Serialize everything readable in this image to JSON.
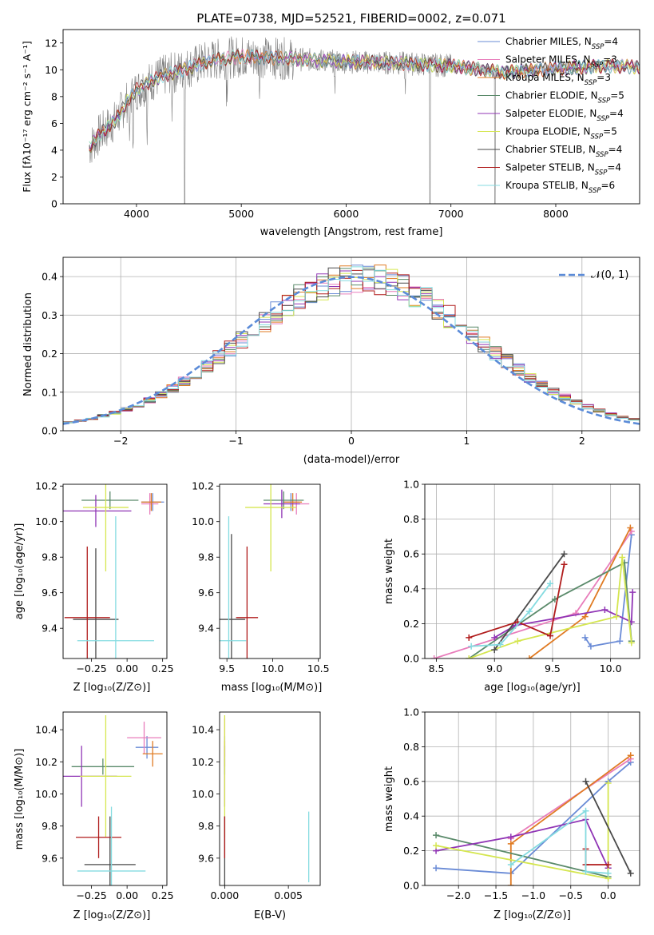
{
  "figure": {
    "title": "PLATE=0738, MJD=52521, FIBERID=0002, z=0.071"
  },
  "chart_data": [
    {
      "id": "spectrum",
      "type": "line",
      "xlabel": "wavelength [Angstrom, rest frame]",
      "ylabel": "Flux [f_λ10^-17 erg cm^-2 s^-1 A^-1]",
      "xlim": [
        3300,
        8800
      ],
      "ylim": [
        0,
        13
      ],
      "xticks": [
        4000,
        5000,
        6000,
        7000,
        8000
      ],
      "yticks": [
        0,
        2,
        4,
        6,
        8,
        10,
        12
      ],
      "grid": false,
      "legend_position": "right",
      "data_color": "#808080",
      "series": [
        {
          "name": "Chabrier MILES, N_SSP=4",
          "color": "#6a8bd6"
        },
        {
          "name": "Salpeter MILES, N_SSP=3",
          "color": "#e87dbb"
        },
        {
          "name": "Kroupa MILES, N_SSP=3",
          "color": "#e07b23"
        },
        {
          "name": "Chabrier ELODIE, N_SSP=5",
          "color": "#5a8a6a"
        },
        {
          "name": "Salpeter ELODIE, N_SSP=4",
          "color": "#9035b5"
        },
        {
          "name": "Kroupa ELODIE, N_SSP=5",
          "color": "#d5e650"
        },
        {
          "name": "Chabrier STELIB, N_SSP=4",
          "color": "#4a4a4a"
        },
        {
          "name": "Salpeter STELIB, N_SSP=4",
          "color": "#b01c1c"
        },
        {
          "name": "Kroupa STELIB, N_SSP=6",
          "color": "#84dbe0"
        }
      ],
      "continuum_points": [
        [
          3550,
          4.2
        ],
        [
          3650,
          5.2
        ],
        [
          3800,
          6.2
        ],
        [
          3900,
          7.5
        ],
        [
          4000,
          8.5
        ],
        [
          4200,
          9.4
        ],
        [
          4400,
          9.9
        ],
        [
          4700,
          10.7
        ],
        [
          5000,
          11.0
        ],
        [
          5500,
          10.8
        ],
        [
          6000,
          10.6
        ],
        [
          6500,
          10.5
        ],
        [
          7000,
          10.3
        ],
        [
          7500,
          9.8
        ],
        [
          8000,
          10.1
        ],
        [
          8500,
          10.3
        ],
        [
          8800,
          10.2
        ]
      ]
    },
    {
      "id": "residuals",
      "type": "histogram",
      "xlabel": "(data-model)/error",
      "ylabel": "Normed distribution",
      "xlim": [
        -2.5,
        2.5
      ],
      "ylim": [
        0,
        0.45
      ],
      "xticks": [
        -2,
        -1,
        0,
        1,
        2
      ],
      "yticks": [
        0.0,
        0.1,
        0.2,
        0.3,
        0.4
      ],
      "grid": true,
      "legend": "N(0,1)",
      "legend_position": "top-right",
      "bin_width": 0.1,
      "reference_curve": "gaussian mean 0 sigma 1"
    },
    {
      "id": "age_vs_Z",
      "type": "scatter-errorbars",
      "xlabel": "Z [log10(Z/Z⊙)]",
      "ylabel": "age  [log10(age/yr)]",
      "xlim": [
        -0.45,
        0.28
      ],
      "ylim": [
        9.23,
        10.21
      ],
      "xticks": [
        -0.25,
        0.0,
        0.25
      ],
      "yticks": [
        9.4,
        9.6,
        9.8,
        10.0,
        10.2
      ],
      "points": [
        {
          "x": 0.18,
          "y": 10.11,
          "xerr": 0.08,
          "yerr": 0.05,
          "color": "#6a8bd6"
        },
        {
          "x": 0.16,
          "y": 10.1,
          "xerr": 0.06,
          "yerr": 0.06,
          "color": "#e87dbb"
        },
        {
          "x": 0.17,
          "y": 10.11,
          "xerr": 0.07,
          "yerr": 0.05,
          "color": "#e07b23"
        },
        {
          "x": -0.12,
          "y": 10.12,
          "xerr": 0.2,
          "yerr": 0.05,
          "color": "#5a8a6a"
        },
        {
          "x": -0.22,
          "y": 10.06,
          "xerr": 0.25,
          "yerr": 0.09,
          "color": "#9035b5"
        },
        {
          "x": -0.15,
          "y": 10.08,
          "xerr": 0.16,
          "yerr": 0.36,
          "color": "#d5e650"
        },
        {
          "x": -0.22,
          "y": 9.45,
          "xerr": 0.16,
          "yerr": 0.4,
          "color": "#4a4a4a"
        },
        {
          "x": -0.28,
          "y": 9.46,
          "xerr": 0.16,
          "yerr": 0.4,
          "color": "#b01c1c"
        },
        {
          "x": -0.08,
          "y": 9.33,
          "xerr": 0.27,
          "yerr": 0.7,
          "color": "#84dbe0"
        }
      ]
    },
    {
      "id": "age_vs_mass",
      "type": "scatter-errorbars",
      "xlabel": "mass [log10(M/M⊙)]",
      "ylabel": "",
      "xlim": [
        9.42,
        10.52
      ],
      "ylim": [
        9.23,
        10.21
      ],
      "xticks": [
        9.5,
        10.0,
        10.5
      ],
      "yticks": [
        9.4,
        9.6,
        9.8,
        10.0,
        10.2
      ],
      "points": [
        {
          "x": 10.2,
          "y": 10.11,
          "xerr": 0.09,
          "yerr": 0.05,
          "color": "#6a8bd6"
        },
        {
          "x": 10.26,
          "y": 10.1,
          "xerr": 0.14,
          "yerr": 0.06,
          "color": "#e87dbb"
        },
        {
          "x": 10.22,
          "y": 10.11,
          "xerr": 0.1,
          "yerr": 0.05,
          "color": "#e07b23"
        },
        {
          "x": 10.12,
          "y": 10.12,
          "xerr": 0.22,
          "yerr": 0.05,
          "color": "#5a8a6a"
        },
        {
          "x": 10.1,
          "y": 10.1,
          "xerr": 0.2,
          "yerr": 0.08,
          "color": "#9035b5"
        },
        {
          "x": 9.98,
          "y": 10.08,
          "xerr": 0.28,
          "yerr": 0.36,
          "color": "#d5e650"
        },
        {
          "x": 9.55,
          "y": 9.45,
          "xerr": 0.15,
          "yerr": 0.48,
          "color": "#4a4a4a"
        },
        {
          "x": 9.72,
          "y": 9.46,
          "xerr": 0.12,
          "yerr": 0.4,
          "color": "#b01c1c"
        },
        {
          "x": 9.52,
          "y": 9.33,
          "xerr": 0.19,
          "yerr": 0.7,
          "color": "#84dbe0"
        }
      ]
    },
    {
      "id": "weight_vs_age",
      "type": "line",
      "xlabel": "age  [log10(age/yr)]",
      "ylabel": "mass weight",
      "xlim": [
        8.4,
        10.25
      ],
      "ylim": [
        0,
        1.0
      ],
      "xticks": [
        8.5,
        9.0,
        9.5,
        10.0
      ],
      "yticks": [
        0.0,
        0.2,
        0.4,
        0.6,
        0.8,
        1.0
      ],
      "grid": true,
      "series": [
        {
          "name": "Chabrier MILES",
          "color": "#6a8bd6",
          "x": [
            9.78,
            9.83,
            10.08,
            10.18
          ],
          "y": [
            0.12,
            0.07,
            0.1,
            0.71
          ]
        },
        {
          "name": "Salpeter MILES",
          "color": "#e87dbb",
          "x": [
            8.48,
            9.7,
            10.18
          ],
          "y": [
            0.0,
            0.26,
            0.73
          ]
        },
        {
          "name": "Kroupa MILES",
          "color": "#e07b23",
          "x": [
            9.3,
            9.78,
            10.17
          ],
          "y": [
            0.0,
            0.24,
            0.75
          ]
        },
        {
          "name": "Chabrier ELODIE",
          "color": "#5a8a6a",
          "x": [
            8.78,
            9.52,
            10.12,
            10.18
          ],
          "y": [
            0.0,
            0.34,
            0.55,
            0.1
          ]
        },
        {
          "name": "Salpeter ELODIE",
          "color": "#9035b5",
          "x": [
            9.0,
            9.18,
            9.95,
            10.18,
            10.19
          ],
          "y": [
            0.12,
            0.19,
            0.28,
            0.21,
            0.38
          ]
        },
        {
          "name": "Kroupa ELODIE",
          "color": "#d5e650",
          "x": [
            8.78,
            9.2,
            10.05,
            10.1,
            10.18
          ],
          "y": [
            0.0,
            0.1,
            0.24,
            0.58,
            0.09
          ]
        },
        {
          "name": "Chabrier STELIB",
          "color": "#4a4a4a",
          "x": [
            9.0,
            9.6
          ],
          "y": [
            0.05,
            0.6
          ]
        },
        {
          "name": "Salpeter STELIB",
          "color": "#b01c1c",
          "x": [
            8.78,
            9.2,
            9.48,
            9.6
          ],
          "y": [
            0.12,
            0.21,
            0.13,
            0.54
          ]
        },
        {
          "name": "Kroupa STELIB",
          "color": "#84dbe0",
          "x": [
            8.8,
            9.05,
            9.3,
            9.48
          ],
          "y": [
            0.07,
            0.08,
            0.27,
            0.43
          ]
        }
      ]
    },
    {
      "id": "mass_vs_Z",
      "type": "scatter-errorbars",
      "xlabel": "Z [log10(Z/Z⊙)]",
      "ylabel": "mass [log10(M/M⊙)]",
      "xlim": [
        -0.45,
        0.28
      ],
      "ylim": [
        9.43,
        10.51
      ],
      "xticks": [
        -0.25,
        0.0,
        0.25
      ],
      "yticks": [
        9.6,
        9.8,
        10.0,
        10.2,
        10.4
      ],
      "points": [
        {
          "x": 0.14,
          "y": 10.29,
          "xerr": 0.08,
          "yerr": 0.07,
          "color": "#6a8bd6"
        },
        {
          "x": 0.12,
          "y": 10.35,
          "xerr": 0.12,
          "yerr": 0.1,
          "color": "#e87dbb"
        },
        {
          "x": 0.18,
          "y": 10.25,
          "xerr": 0.07,
          "yerr": 0.08,
          "color": "#e07b23"
        },
        {
          "x": -0.17,
          "y": 10.17,
          "xerr": 0.22,
          "yerr": 0.05,
          "color": "#5a8a6a"
        },
        {
          "x": -0.32,
          "y": 10.11,
          "xerr": 0.25,
          "yerr": 0.19,
          "color": "#9035b5"
        },
        {
          "x": -0.15,
          "y": 10.11,
          "xerr": 0.18,
          "yerr": 0.38,
          "color": "#d5e650"
        },
        {
          "x": -0.12,
          "y": 9.56,
          "xerr": 0.18,
          "yerr": 0.3,
          "color": "#4a4a4a"
        },
        {
          "x": -0.2,
          "y": 9.73,
          "xerr": 0.16,
          "yerr": 0.13,
          "color": "#b01c1c"
        },
        {
          "x": -0.11,
          "y": 9.52,
          "xerr": 0.24,
          "yerr": 0.4,
          "color": "#84dbe0"
        }
      ]
    },
    {
      "id": "mass_vs_ebv",
      "type": "scatter-errorbars",
      "xlabel": "E(B-V)",
      "ylabel": "",
      "xlim": [
        -0.0004,
        0.0075
      ],
      "ylim": [
        9.43,
        10.51
      ],
      "xticks": [
        0.0,
        0.005
      ],
      "xtick_labels": [
        "0.000",
        "0.005"
      ],
      "yticks": [
        9.6,
        9.8,
        10.0,
        10.2,
        10.4
      ],
      "points": [
        {
          "x": 0.0,
          "y": 10.29,
          "yerr": 0.07,
          "color": "#6a8bd6"
        },
        {
          "x": 0.0,
          "y": 10.35,
          "yerr": 0.12,
          "color": "#e87dbb"
        },
        {
          "x": 0.0,
          "y": 10.25,
          "yerr": 0.08,
          "color": "#e07b23"
        },
        {
          "x": 0.0,
          "y": 10.17,
          "yerr": 0.05,
          "color": "#5a8a6a"
        },
        {
          "x": 0.0,
          "y": 10.11,
          "yerr": 0.19,
          "color": "#9035b5"
        },
        {
          "x": 0.0,
          "y": 10.11,
          "yerr": 0.38,
          "color": "#d5e650"
        },
        {
          "x": 0.0,
          "y": 9.56,
          "yerr": 0.3,
          "color": "#4a4a4a"
        },
        {
          "x": 0.0,
          "y": 9.73,
          "yerr": 0.13,
          "color": "#b01c1c"
        },
        {
          "x": 0.0066,
          "y": 9.67,
          "yerr": 0.22,
          "color": "#84dbe0"
        }
      ]
    },
    {
      "id": "weight_vs_Z",
      "type": "line",
      "xlabel": "Z [log10(Z/Z⊙)]",
      "ylabel": "mass weight",
      "xlim": [
        -2.45,
        0.42
      ],
      "ylim": [
        0,
        1.0
      ],
      "xticks": [
        -2.0,
        -1.5,
        -1.0,
        -0.5,
        0.0
      ],
      "yticks": [
        0.0,
        0.2,
        0.4,
        0.6,
        0.8,
        1.0
      ],
      "grid": true,
      "series": [
        {
          "name": "Chabrier MILES",
          "color": "#6a8bd6",
          "x": [
            -2.3,
            -1.3,
            0.0,
            0.3
          ],
          "y": [
            0.1,
            0.07,
            0.6,
            0.71
          ]
        },
        {
          "name": "Salpeter MILES",
          "color": "#e87dbb",
          "x": [
            -1.3,
            0.3
          ],
          "y": [
            0.27,
            0.73
          ]
        },
        {
          "name": "Kroupa MILES",
          "color": "#e07b23",
          "x": [
            -1.3,
            -1.3,
            0.3
          ],
          "y": [
            0.0,
            0.24,
            0.75
          ]
        },
        {
          "name": "Chabrier ELODIE",
          "color": "#5a8a6a",
          "x": [
            -2.3,
            0.0,
            0.0
          ],
          "y": [
            0.29,
            0.05,
            0.1
          ]
        },
        {
          "name": "Salpeter ELODIE",
          "color": "#9035b5",
          "x": [
            -2.3,
            -1.3,
            -0.3,
            0.0
          ],
          "y": [
            0.2,
            0.28,
            0.38,
            0.1
          ]
        },
        {
          "name": "Kroupa ELODIE",
          "color": "#d5e650",
          "x": [
            -2.3,
            0.0,
            0.0
          ],
          "y": [
            0.23,
            0.04,
            0.59
          ]
        },
        {
          "name": "Chabrier STELIB",
          "color": "#4a4a4a",
          "x": [
            -0.3,
            0.3
          ],
          "y": [
            0.6,
            0.07
          ]
        },
        {
          "name": "Salpeter STELIB",
          "color": "#b01c1c",
          "x": [
            -0.3,
            -0.3,
            0.0
          ],
          "y": [
            0.21,
            0.12,
            0.12
          ]
        },
        {
          "name": "Kroupa STELIB",
          "color": "#84dbe0",
          "x": [
            -1.3,
            -0.3,
            -0.3,
            0.0
          ],
          "y": [
            0.12,
            0.43,
            0.08,
            0.07
          ]
        }
      ]
    }
  ]
}
